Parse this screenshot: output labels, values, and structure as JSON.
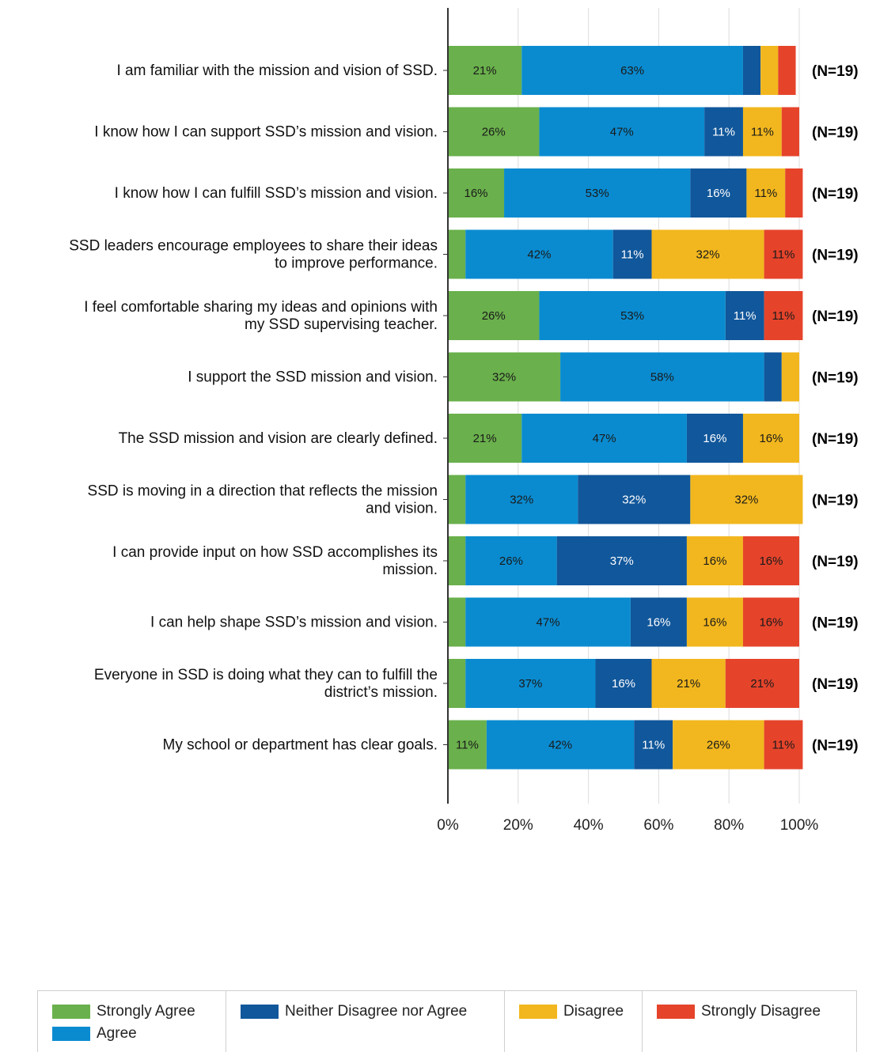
{
  "chart_data": {
    "type": "bar",
    "orientation": "horizontal",
    "stacked": true,
    "categories": [
      "I am familiar with the mission and vision of SSD.",
      "I know how I can support SSD’s mission and vision.",
      "I know how I can fulfill SSD’s mission and vision.",
      "SSD leaders encourage employees to share their ideas to improve performance.",
      "I feel comfortable sharing my ideas and opinions with my SSD supervising teacher.",
      "I support the SSD mission and vision.",
      "The SSD mission and vision are clearly defined.",
      "SSD is moving in a direction that reflects the mission and vision.",
      "I can provide input on how SSD accomplishes its mission.",
      "I can help shape SSD’s mission and vision.",
      "Everyone in SSD is doing what they can to fulfill the district’s mission.",
      "My school or department has clear goals."
    ],
    "category_lines": [
      [
        "I am familiar with the mission and vision of SSD."
      ],
      [
        "I know how I can support SSD’s mission and vision."
      ],
      [
        "I know how I can fulfill SSD’s mission and vision."
      ],
      [
        "SSD leaders encourage employees to share their ideas",
        "to improve performance."
      ],
      [
        "I feel comfortable sharing my ideas and opinions with",
        "my SSD supervising teacher."
      ],
      [
        "I support the SSD mission and vision."
      ],
      [
        "The SSD mission and vision are clearly defined."
      ],
      [
        "SSD is moving in a direction that reflects the mission",
        "and vision."
      ],
      [
        "I can provide input on how SSD accomplishes its",
        "mission."
      ],
      [
        "I can help shape SSD’s mission and vision."
      ],
      [
        "Everyone in SSD is doing what they can to fulfill the",
        "district’s mission."
      ],
      [
        "My school or department has clear goals."
      ]
    ],
    "series": [
      {
        "name": "Strongly Agree",
        "color": "#6ab04c",
        "label_color": "#1a1a1a",
        "values": [
          21,
          26,
          16,
          5,
          26,
          32,
          21,
          5,
          5,
          5,
          5,
          11
        ]
      },
      {
        "name": "Agree",
        "color": "#0a8bd0",
        "label_color": "#1a1a1a",
        "values": [
          63,
          47,
          53,
          42,
          53,
          58,
          47,
          32,
          26,
          47,
          37,
          42
        ]
      },
      {
        "name": "Neither Disagree nor Agree",
        "color": "#11579b",
        "label_color": "#ffffff",
        "values": [
          5,
          11,
          16,
          11,
          11,
          5,
          16,
          32,
          37,
          16,
          16,
          11
        ]
      },
      {
        "name": "Disagree",
        "color": "#f2b71e",
        "label_color": "#1a1a1a",
        "values": [
          5,
          11,
          11,
          32,
          0,
          5,
          16,
          32,
          16,
          16,
          21,
          26
        ]
      },
      {
        "name": "Strongly Disagree",
        "color": "#e5442b",
        "label_color": "#1a1a1a",
        "values": [
          5,
          5,
          5,
          11,
          11,
          0,
          0,
          0,
          16,
          16,
          21,
          11
        ]
      }
    ],
    "n_labels": [
      "(N=19)",
      "(N=19)",
      "(N=19)",
      "(N=19)",
      "(N=19)",
      "(N=19)",
      "(N=19)",
      "(N=19)",
      "(N=19)",
      "(N=19)",
      "(N=19)",
      "(N=19)"
    ],
    "x_ticks": [
      "0%",
      "20%",
      "40%",
      "60%",
      "80%",
      "100%"
    ],
    "xlim": [
      0,
      100
    ],
    "min_labeled_value": 10,
    "grid": true,
    "legend_position": "bottom",
    "title": "",
    "xlabel": "",
    "ylabel": ""
  }
}
